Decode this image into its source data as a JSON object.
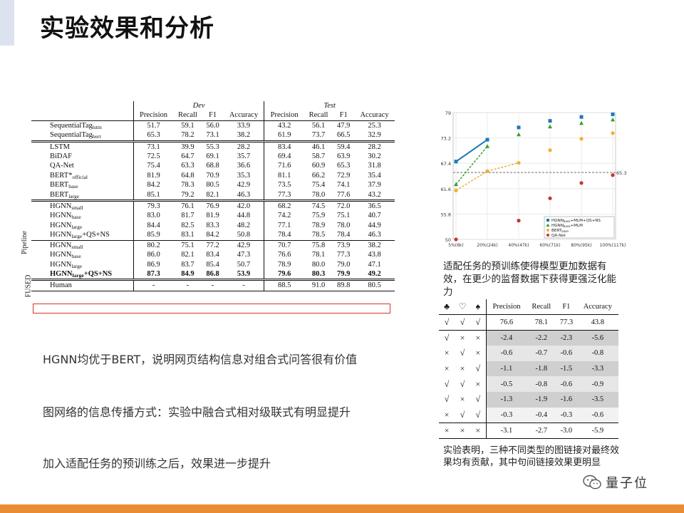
{
  "slide": {
    "title": "实验效果和分析"
  },
  "main_table": {
    "split_headers": [
      "Dev",
      "Test"
    ],
    "columns": [
      "Precision",
      "Recall",
      "F1",
      "Accuracy",
      "Precision",
      "Recall",
      "F1",
      "Accuracy"
    ],
    "group_labels": [
      "Pipeline",
      "FUSED"
    ],
    "rows": [
      {
        "model": "SequentialTag",
        "sub": "lstm",
        "suffix": "",
        "dev": [
          "51.7",
          "59.1",
          "56.0",
          "33.9"
        ],
        "test": [
          "43.2",
          "56.1",
          "47.9",
          "25.3"
        ]
      },
      {
        "model": "SequentialTag",
        "sub": "bert",
        "suffix": "",
        "dev": [
          "65.3",
          "78.2",
          "73.1",
          "38.2"
        ],
        "test": [
          "61.9",
          "73.7",
          "66.5",
          "32.9"
        ]
      },
      {
        "model": "LSTM",
        "sub": "",
        "suffix": "",
        "dev": [
          "73.1",
          "39.9",
          "55.3",
          "28.2"
        ],
        "test": [
          "83.4",
          "46.1",
          "59.4",
          "28.2"
        ]
      },
      {
        "model": "BiDAF",
        "sub": "",
        "suffix": "",
        "dev": [
          "72.5",
          "64.7",
          "69.1",
          "35.7"
        ],
        "test": [
          "69.4",
          "58.7",
          "63.9",
          "30.2"
        ]
      },
      {
        "model": "QA-Net",
        "sub": "",
        "suffix": "",
        "dev": [
          "75.4",
          "63.3",
          "68.8",
          "36.6"
        ],
        "test": [
          "71.6",
          "60.9",
          "65.3",
          "31.8"
        ]
      },
      {
        "model": "BERT*",
        "sub": "official",
        "suffix": "",
        "dev": [
          "81.9",
          "64.8",
          "70.9",
          "35.3"
        ],
        "test": [
          "81.1",
          "66.2",
          "72.9",
          "35.4"
        ]
      },
      {
        "model": "BERT",
        "sub": "base",
        "suffix": "",
        "dev": [
          "84.2",
          "78.3",
          "80.5",
          "42.9"
        ],
        "test": [
          "73.5",
          "75.4",
          "74.1",
          "37.9"
        ]
      },
      {
        "model": "BERT",
        "sub": "large",
        "suffix": "",
        "dev": [
          "85.1",
          "79.2",
          "82.1",
          "46.3"
        ],
        "test": [
          "77.3",
          "78.0",
          "77.6",
          "43.2"
        ]
      },
      {
        "model": "HGNN",
        "sub": "small",
        "suffix": "",
        "dev": [
          "79.3",
          "76.1",
          "76.9",
          "42.0"
        ],
        "test": [
          "68.2",
          "74.5",
          "72.0",
          "36.5"
        ]
      },
      {
        "model": "HGNN",
        "sub": "base",
        "suffix": "",
        "dev": [
          "83.0",
          "81.7",
          "81.9",
          "44.8"
        ],
        "test": [
          "74.2",
          "75.9",
          "75.1",
          "40.7"
        ]
      },
      {
        "model": "HGNN",
        "sub": "large",
        "suffix": "",
        "dev": [
          "84.4",
          "82.5",
          "83.3",
          "48.2"
        ],
        "test": [
          "77.1",
          "78.9",
          "78.0",
          "44.9"
        ]
      },
      {
        "model": "HGNN",
        "sub": "large",
        "suffix": "+QS+NS",
        "dev": [
          "85.9",
          "83.1",
          "84.2",
          "50.8"
        ],
        "test": [
          "78.4",
          "78.5",
          "78.4",
          "46.3"
        ]
      },
      {
        "model": "HGNN",
        "sub": "small",
        "suffix": "",
        "dev": [
          "80.2",
          "75.1",
          "77.2",
          "42.9"
        ],
        "test": [
          "70.7",
          "75.8",
          "73.9",
          "38.2"
        ]
      },
      {
        "model": "HGNN",
        "sub": "base",
        "suffix": "",
        "dev": [
          "86.0",
          "82.1",
          "83.4",
          "47.3"
        ],
        "test": [
          "76.6",
          "78.1",
          "77.3",
          "43.8"
        ]
      },
      {
        "model": "HGNN",
        "sub": "large",
        "suffix": "",
        "dev": [
          "86.9",
          "83.7",
          "85.4",
          "50.7"
        ],
        "test": [
          "78.9",
          "80.0",
          "79.0",
          "47.1"
        ]
      },
      {
        "model": "HGNN",
        "sub": "large",
        "suffix": "+QS+NS",
        "dev": [
          "87.3",
          "84.9",
          "86.8",
          "53.9"
        ],
        "test": [
          "79.6",
          "80.3",
          "79.9",
          "49.2"
        ]
      },
      {
        "model": "Human",
        "sub": "",
        "suffix": "",
        "dev": [
          "-",
          "-",
          "-",
          "-"
        ],
        "test": [
          "88.5",
          "91.0",
          "89.8",
          "80.5"
        ]
      }
    ]
  },
  "bullets": [
    "HGNN均优于BERT，说明网页结构信息对组合式问答很有价值",
    "图网络的信息传播方式：实验中融合式相对级联式有明显提升",
    "加入适配任务的预训练之后，效果进一步提升"
  ],
  "chart_data": {
    "type": "line",
    "x": [
      "5%(6k)",
      "20%(24k)",
      "40%(47k)",
      "60%(71k)",
      "80%(95k)",
      "100%(117k)"
    ],
    "y_ticks": [
      "79",
      "73.2",
      "67.4",
      "61.6",
      "55.8",
      "50"
    ],
    "ylim": [
      50,
      79
    ],
    "reference_line": {
      "value": 65.3,
      "label": "65.3",
      "color": "#555555"
    },
    "legend_position": "bottom-right",
    "grid": true,
    "series": [
      {
        "name": "HGNN",
        "sub": "base",
        "suffix": "+MLM+QS+NS",
        "color": "#1f78b4",
        "marker": "square",
        "values": [
          67.8,
          72.8,
          75.6,
          77.1,
          78.0,
          78.6
        ]
      },
      {
        "name": "HGNN",
        "sub": "base",
        "suffix": "+MLM",
        "color": "#33a02c",
        "marker": "triangle",
        "values": [
          62.6,
          71.3,
          74.0,
          75.8,
          76.6,
          77.4
        ]
      },
      {
        "name": "BERT",
        "sub": "base",
        "suffix": "",
        "color": "#f0b030",
        "marker": "circle",
        "values": [
          61.2,
          65.6,
          67.5,
          70.4,
          73.0,
          74.3
        ]
      },
      {
        "name": "QA-Net",
        "sub": "",
        "suffix": "",
        "color": "#c0392b",
        "marker": "circle",
        "values": [
          50.0,
          null,
          54.3,
          59.4,
          62.9,
          64.7
        ]
      }
    ]
  },
  "chart_caption": "适配任务的预训练使得模型更加数据有效，在更少的监督数据下获得更强泛化能力",
  "ablation_table": {
    "headers": [
      "♣",
      "♡",
      "♠",
      "Precision",
      "Recall",
      "F1",
      "Accuracy"
    ],
    "rows": [
      {
        "marks": [
          "√",
          "√",
          "√"
        ],
        "values": [
          "76.6",
          "78.1",
          "77.3",
          "43.8"
        ],
        "shade": "none"
      },
      {
        "marks": [
          "√",
          "×",
          "×"
        ],
        "values": [
          "-2.4",
          "-2.2",
          "-2.3",
          "-5.6"
        ],
        "shade": "c2"
      },
      {
        "marks": [
          "×",
          "√",
          "×"
        ],
        "values": [
          "-0.6",
          "-0.7",
          "-0.6",
          "-0.8"
        ],
        "shade": "c1"
      },
      {
        "marks": [
          "×",
          "×",
          "√"
        ],
        "values": [
          "-1.1",
          "-1.8",
          "-1.5",
          "-3.3"
        ],
        "shade": "c2"
      },
      {
        "marks": [
          "√",
          "√",
          "×"
        ],
        "values": [
          "-0.5",
          "-0.8",
          "-0.6",
          "-0.9"
        ],
        "shade": "c1"
      },
      {
        "marks": [
          "√",
          "×",
          "√"
        ],
        "values": [
          "-1.3",
          "-1.9",
          "-1.6",
          "-3.5"
        ],
        "shade": "c2"
      },
      {
        "marks": [
          "×",
          "√",
          "√"
        ],
        "values": [
          "-0.3",
          "-0.4",
          "-0.3",
          "-0.6"
        ],
        "shade": "c3"
      },
      {
        "marks": [
          "×",
          "×",
          "×"
        ],
        "values": [
          "-3.1",
          "-2.7",
          "-3.0",
          "-5.9"
        ],
        "shade": "none"
      }
    ]
  },
  "ablation_caption": "实验表明，三种不同类型的图链接对最终效果均有贡献，其中句间链接效果更明显",
  "watermark": {
    "text": "量子位",
    "icon": "wechat-icon"
  },
  "colors": {
    "accent_bar": "#e98c33",
    "highlight_box": "#d9312b"
  }
}
